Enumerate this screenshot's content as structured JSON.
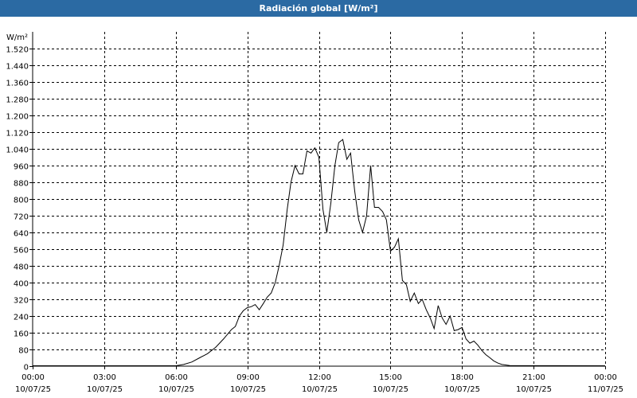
{
  "title": "Radiación global [W/m²]",
  "chart_data": {
    "type": "line",
    "title": "Radiación global [W/m²]",
    "ylabel": "W/m²",
    "ylim": [
      0,
      1600
    ],
    "xlim": [
      0,
      24
    ],
    "grid": true,
    "y_ticks": [
      0,
      80,
      160,
      240,
      320,
      400,
      480,
      560,
      640,
      720,
      800,
      880,
      960,
      1040,
      1120,
      1200,
      1280,
      1360,
      1440,
      1520
    ],
    "y_tick_labels": [
      "0",
      "80",
      "160",
      "240",
      "320",
      "400",
      "480",
      "560",
      "640",
      "720",
      "800",
      "880",
      "960",
      "1.040",
      "1.120",
      "1.200",
      "1.280",
      "1.360",
      "1.440",
      "1.520"
    ],
    "x_ticks": [
      {
        "time": "00:00",
        "date": "10/07/25"
      },
      {
        "time": "03:00",
        "date": "10/07/25"
      },
      {
        "time": "06:00",
        "date": "10/07/25"
      },
      {
        "time": "09:00",
        "date": "10/07/25"
      },
      {
        "time": "12:00",
        "date": "10/07/25"
      },
      {
        "time": "15:00",
        "date": "10/07/25"
      },
      {
        "time": "18:00",
        "date": "10/07/25"
      },
      {
        "time": "21:00",
        "date": "10/07/25"
      },
      {
        "time": "00:00",
        "date": "11/07/25"
      }
    ],
    "series": [
      {
        "points": [
          [
            0,
            2
          ],
          [
            6.0,
            2
          ],
          [
            6.33,
            8
          ],
          [
            6.67,
            20
          ],
          [
            7.0,
            40
          ],
          [
            7.33,
            60
          ],
          [
            7.67,
            90
          ],
          [
            8.0,
            130
          ],
          [
            8.33,
            175
          ],
          [
            8.5,
            190
          ],
          [
            8.67,
            240
          ],
          [
            8.83,
            265
          ],
          [
            9.0,
            280
          ],
          [
            9.17,
            285
          ],
          [
            9.33,
            295
          ],
          [
            9.5,
            270
          ],
          [
            9.67,
            300
          ],
          [
            9.83,
            330
          ],
          [
            10.0,
            350
          ],
          [
            10.17,
            400
          ],
          [
            10.33,
            480
          ],
          [
            10.5,
            580
          ],
          [
            10.67,
            750
          ],
          [
            10.83,
            880
          ],
          [
            11.0,
            960
          ],
          [
            11.17,
            920
          ],
          [
            11.33,
            920
          ],
          [
            11.5,
            1030
          ],
          [
            11.67,
            1020
          ],
          [
            11.83,
            1045
          ],
          [
            12.0,
            1000
          ],
          [
            12.17,
            750
          ],
          [
            12.33,
            640
          ],
          [
            12.5,
            780
          ],
          [
            12.67,
            960
          ],
          [
            12.83,
            1070
          ],
          [
            13.0,
            1085
          ],
          [
            13.17,
            990
          ],
          [
            13.33,
            1020
          ],
          [
            13.5,
            840
          ],
          [
            13.67,
            700
          ],
          [
            13.83,
            640
          ],
          [
            14.0,
            720
          ],
          [
            14.17,
            960
          ],
          [
            14.33,
            760
          ],
          [
            14.5,
            760
          ],
          [
            14.67,
            740
          ],
          [
            14.83,
            700
          ],
          [
            15.0,
            550
          ],
          [
            15.17,
            570
          ],
          [
            15.33,
            610
          ],
          [
            15.5,
            410
          ],
          [
            15.67,
            390
          ],
          [
            15.83,
            310
          ],
          [
            16.0,
            350
          ],
          [
            16.17,
            300
          ],
          [
            16.33,
            320
          ],
          [
            16.5,
            270
          ],
          [
            16.67,
            230
          ],
          [
            16.83,
            180
          ],
          [
            17.0,
            290
          ],
          [
            17.17,
            230
          ],
          [
            17.33,
            200
          ],
          [
            17.5,
            240
          ],
          [
            17.67,
            170
          ],
          [
            17.83,
            175
          ],
          [
            18.0,
            185
          ],
          [
            18.17,
            130
          ],
          [
            18.33,
            110
          ],
          [
            18.5,
            120
          ],
          [
            18.67,
            100
          ],
          [
            18.83,
            75
          ],
          [
            19.0,
            55
          ],
          [
            19.17,
            40
          ],
          [
            19.33,
            25
          ],
          [
            19.5,
            15
          ],
          [
            19.67,
            8
          ],
          [
            20.0,
            3
          ],
          [
            24.0,
            2
          ]
        ]
      }
    ]
  }
}
